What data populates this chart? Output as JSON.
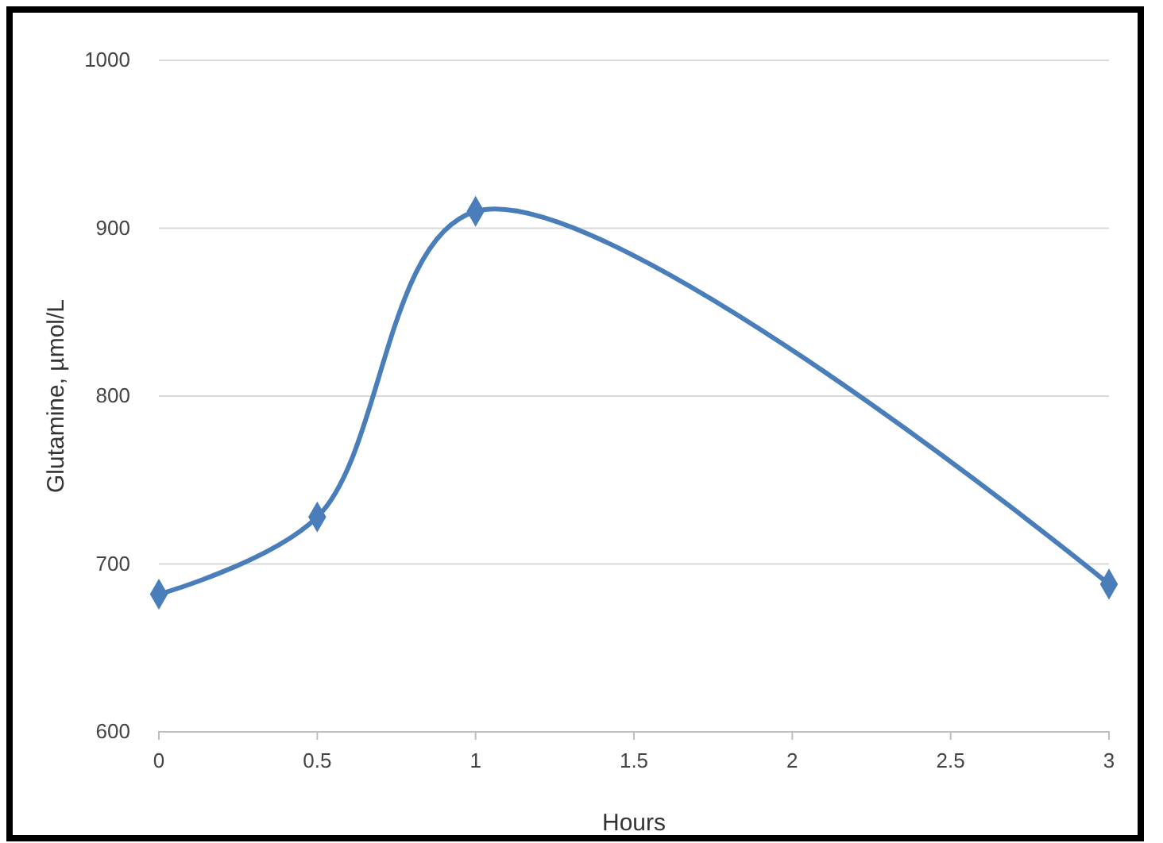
{
  "chart_data": {
    "type": "line",
    "xlabel": "Hours",
    "ylabel": "Glutamine, µmol/L",
    "x": [
      0,
      0.5,
      1,
      3
    ],
    "series": [
      {
        "color": "#4a7ebb",
        "values": [
          682,
          728,
          910,
          688
        ]
      }
    ],
    "xlim": [
      0,
      3
    ],
    "xticks": [
      0,
      0.5,
      1,
      1.5,
      2,
      2.5,
      3
    ],
    "ylim": [
      600,
      1000
    ],
    "yticks": [
      600,
      700,
      800,
      900,
      1000
    ],
    "grid": "y",
    "marker": "diamond",
    "line_style": "solid"
  }
}
